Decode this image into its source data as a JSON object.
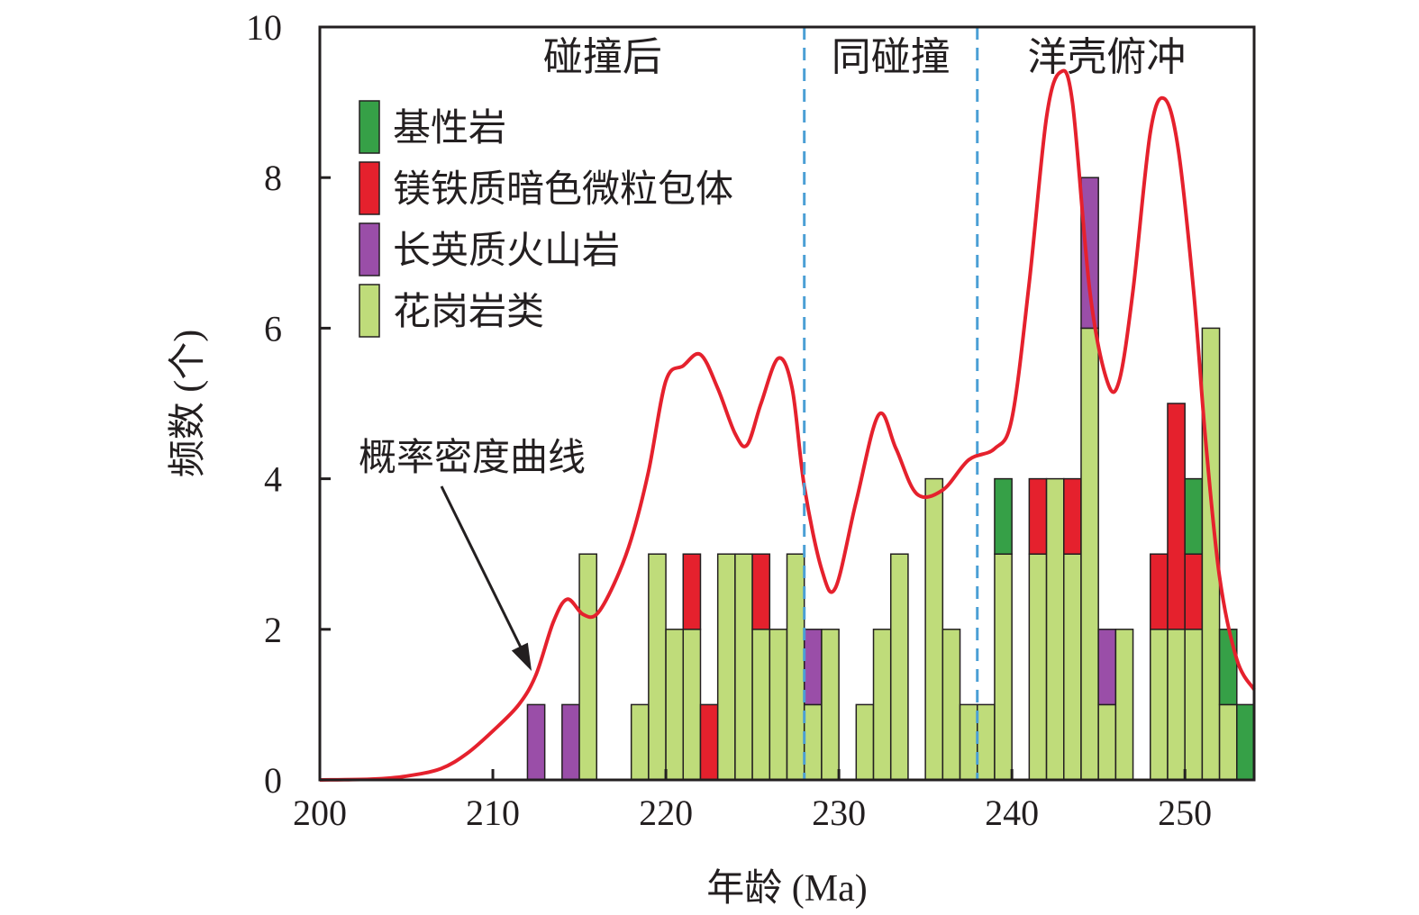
{
  "chart_data": {
    "type": "bar",
    "stacked": true,
    "xlabel": "年龄 (Ma)",
    "ylabel": "频数 (个)",
    "xlim": [
      200,
      254
    ],
    "ylim": [
      0,
      10
    ],
    "x_ticks": [
      200,
      210,
      220,
      230,
      240,
      250
    ],
    "y_ticks": [
      0,
      2,
      4,
      6,
      8,
      10
    ],
    "bin_width": 1,
    "legend_position": "top-left",
    "series": [
      {
        "name": "基性岩",
        "color": "#36a047",
        "values": [
          [
            239,
            1
          ],
          [
            250,
            1
          ],
          [
            252,
            1
          ],
          [
            253,
            1
          ]
        ]
      },
      {
        "name": "镁铁质暗色微粒包体",
        "color": "#e5212d",
        "values": [
          [
            221,
            1
          ],
          [
            222,
            1
          ],
          [
            225,
            1
          ],
          [
            241,
            1
          ],
          [
            243,
            1
          ],
          [
            248,
            1
          ],
          [
            249,
            3
          ],
          [
            250,
            1
          ]
        ]
      },
      {
        "name": "长英质火山岩",
        "color": "#9a4ea8",
        "values": [
          [
            212,
            1
          ],
          [
            214,
            1
          ],
          [
            228,
            1
          ],
          [
            244,
            2
          ],
          [
            245,
            1
          ]
        ]
      },
      {
        "name": "花岗岩类",
        "color": "#bfdc7a",
        "values": [
          [
            215,
            3
          ],
          [
            218,
            1
          ],
          [
            219,
            3
          ],
          [
            220,
            2
          ],
          [
            221,
            2
          ],
          [
            223,
            3
          ],
          [
            224,
            3
          ],
          [
            225,
            2
          ],
          [
            226,
            2
          ],
          [
            227,
            3
          ],
          [
            228,
            1
          ],
          [
            229,
            2
          ],
          [
            231,
            1
          ],
          [
            232,
            2
          ],
          [
            233,
            3
          ],
          [
            235,
            4
          ],
          [
            236,
            2
          ],
          [
            237,
            1
          ],
          [
            238,
            1
          ],
          [
            239,
            3
          ],
          [
            241,
            3
          ],
          [
            242,
            4
          ],
          [
            243,
            3
          ],
          [
            244,
            6
          ],
          [
            245,
            1
          ],
          [
            246,
            2
          ],
          [
            248,
            2
          ],
          [
            249,
            2
          ],
          [
            250,
            2
          ],
          [
            251,
            6
          ],
          [
            252,
            1
          ]
        ]
      }
    ],
    "curve": {
      "name": "概率密度曲线",
      "color": "#e5212d",
      "points": [
        [
          200,
          0
        ],
        [
          203,
          0.01
        ],
        [
          205,
          0.05
        ],
        [
          207,
          0.15
        ],
        [
          208.5,
          0.35
        ],
        [
          210,
          0.65
        ],
        [
          211.5,
          1.0
        ],
        [
          212.5,
          1.4
        ],
        [
          213.5,
          2.1
        ],
        [
          214.3,
          2.4
        ],
        [
          215.2,
          2.2
        ],
        [
          216,
          2.2
        ],
        [
          217,
          2.6
        ],
        [
          218,
          3.2
        ],
        [
          219,
          4.1
        ],
        [
          220,
          5.3
        ],
        [
          221,
          5.5
        ],
        [
          222,
          5.65
        ],
        [
          223,
          5.2
        ],
        [
          224,
          4.6
        ],
        [
          224.7,
          4.45
        ],
        [
          225.5,
          5.0
        ],
        [
          226.5,
          5.6
        ],
        [
          227.3,
          5.2
        ],
        [
          228,
          3.9
        ],
        [
          229,
          2.8
        ],
        [
          229.8,
          2.55
        ],
        [
          231,
          3.7
        ],
        [
          232.3,
          4.85
        ],
        [
          233.3,
          4.4
        ],
        [
          234.5,
          3.8
        ],
        [
          236,
          3.85
        ],
        [
          237.5,
          4.25
        ],
        [
          239,
          4.4
        ],
        [
          240,
          4.8
        ],
        [
          241,
          6.6
        ],
        [
          242,
          8.8
        ],
        [
          242.8,
          9.4
        ],
        [
          243.5,
          9.0
        ],
        [
          244.5,
          6.5
        ],
        [
          245.5,
          5.3
        ],
        [
          246.2,
          5.3
        ],
        [
          247,
          6.5
        ],
        [
          248,
          8.6
        ],
        [
          248.8,
          9.05
        ],
        [
          249.6,
          8.4
        ],
        [
          250.5,
          6.5
        ],
        [
          251.2,
          4.5
        ],
        [
          252,
          2.7
        ],
        [
          253,
          1.6
        ],
        [
          254,
          1.2
        ]
      ]
    },
    "dividers": [
      228,
      238
    ],
    "divider_color": "#4b9fd5",
    "phases": [
      {
        "label": "碰撞后"
      },
      {
        "label": "同碰撞"
      },
      {
        "label": "洋壳俯冲"
      }
    ],
    "annotation": {
      "text": "概率密度曲线"
    }
  }
}
